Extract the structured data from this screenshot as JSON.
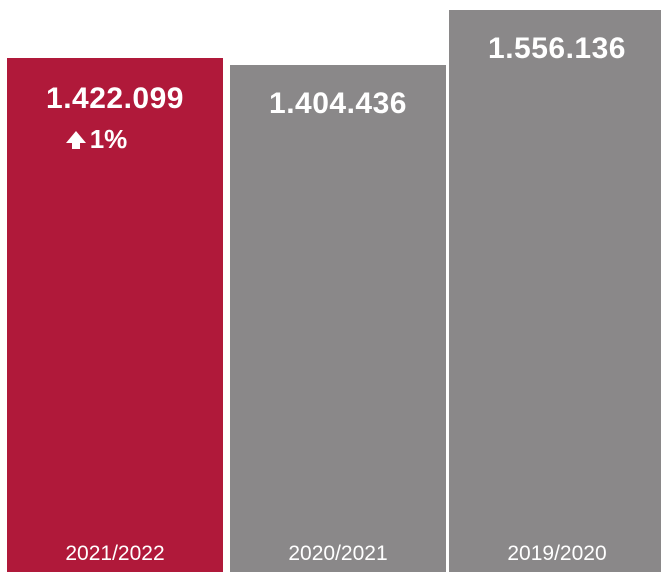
{
  "chart_data": {
    "type": "bar",
    "categories": [
      "2021/2022",
      "2020/2021",
      "2019/2020"
    ],
    "values": [
      1422099,
      1404436,
      1556136
    ],
    "value_labels": [
      "1.422.099",
      "1.404.436",
      "1.556.136"
    ],
    "change": {
      "label": "1%",
      "direction": "up",
      "icon": "arrow-up-icon"
    },
    "ylim": [
      0,
      1600000
    ],
    "grid": false,
    "colors": [
      "#b0193a",
      "#8a8889",
      "#8a8889"
    ]
  }
}
